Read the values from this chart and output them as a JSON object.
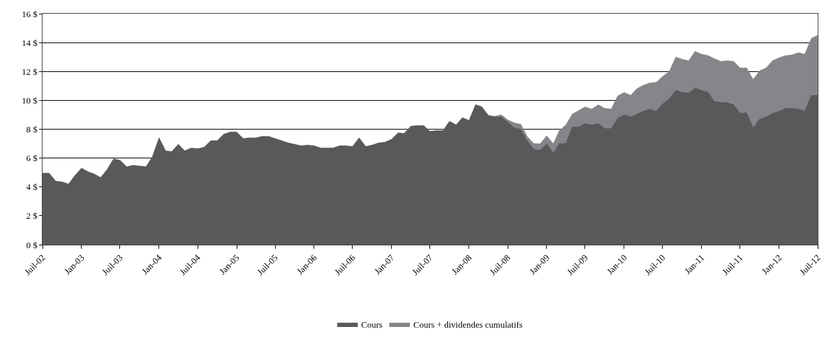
{
  "chart_data": {
    "type": "area",
    "x": [
      "2002-07",
      "2002-08",
      "2002-09",
      "2002-10",
      "2002-11",
      "2002-12",
      "2003-01",
      "2003-02",
      "2003-03",
      "2003-04",
      "2003-05",
      "2003-06",
      "2003-07",
      "2003-08",
      "2003-09",
      "2003-10",
      "2003-11",
      "2003-12",
      "2004-01",
      "2004-02",
      "2004-03",
      "2004-04",
      "2004-05",
      "2004-06",
      "2004-07",
      "2004-08",
      "2004-09",
      "2004-10",
      "2004-11",
      "2004-12",
      "2005-01",
      "2005-02",
      "2005-03",
      "2005-04",
      "2005-05",
      "2005-06",
      "2005-07",
      "2005-08",
      "2005-09",
      "2005-10",
      "2005-11",
      "2005-12",
      "2006-01",
      "2006-02",
      "2006-03",
      "2006-04",
      "2006-05",
      "2006-06",
      "2006-07",
      "2006-08",
      "2006-09",
      "2006-10",
      "2006-11",
      "2006-12",
      "2007-01",
      "2007-02",
      "2007-03",
      "2007-04",
      "2007-05",
      "2007-06",
      "2007-07",
      "2007-08",
      "2007-09",
      "2007-10",
      "2007-11",
      "2007-12",
      "2008-01",
      "2008-02",
      "2008-03",
      "2008-04",
      "2008-05",
      "2008-06",
      "2008-07",
      "2008-08",
      "2008-09",
      "2008-10",
      "2008-11",
      "2008-12",
      "2009-01",
      "2009-02",
      "2009-03",
      "2009-04",
      "2009-05",
      "2009-06",
      "2009-07",
      "2009-08",
      "2009-09",
      "2009-10",
      "2009-11",
      "2009-12",
      "2010-01",
      "2010-02",
      "2010-03",
      "2010-04",
      "2010-05",
      "2010-06",
      "2010-07",
      "2010-08",
      "2010-09",
      "2010-10",
      "2010-11",
      "2010-12",
      "2011-01",
      "2011-02",
      "2011-03",
      "2011-04",
      "2011-05",
      "2011-06",
      "2011-07",
      "2011-08",
      "2011-09",
      "2011-10",
      "2011-11",
      "2011-12",
      "2012-01",
      "2012-02",
      "2012-03",
      "2012-04",
      "2012-05",
      "2012-06",
      "2012-07"
    ],
    "series": [
      {
        "name": "Cours + dividendes cumulatifs",
        "color": "#858689",
        "values": [
          4.95,
          4.95,
          4.4,
          4.35,
          4.2,
          4.8,
          5.3,
          5.05,
          4.9,
          4.65,
          5.2,
          5.95,
          5.85,
          5.4,
          5.5,
          5.45,
          5.4,
          6.1,
          7.4,
          6.5,
          6.45,
          6.95,
          6.5,
          6.7,
          6.65,
          6.75,
          7.2,
          7.2,
          7.65,
          7.8,
          7.8,
          7.35,
          7.4,
          7.4,
          7.5,
          7.5,
          7.35,
          7.2,
          7.05,
          6.95,
          6.85,
          6.9,
          6.85,
          6.7,
          6.7,
          6.7,
          6.85,
          6.85,
          6.8,
          7.4,
          6.8,
          6.9,
          7.05,
          7.1,
          7.3,
          7.75,
          7.7,
          8.2,
          8.25,
          8.25,
          7.85,
          7.9,
          7.9,
          8.55,
          8.3,
          8.8,
          8.6,
          9.7,
          9.55,
          8.95,
          8.9,
          9.0,
          8.65,
          8.45,
          8.35,
          7.5,
          7.0,
          7.0,
          7.55,
          7.0,
          7.9,
          8.3,
          9.05,
          9.3,
          9.55,
          9.4,
          9.7,
          9.45,
          9.4,
          10.3,
          10.55,
          10.35,
          10.8,
          11.05,
          11.2,
          11.25,
          11.65,
          12.0,
          13.0,
          12.85,
          12.75,
          13.4,
          13.2,
          13.1,
          12.9,
          12.7,
          12.75,
          12.7,
          12.25,
          12.25,
          11.45,
          12.05,
          12.25,
          12.75,
          12.95,
          13.1,
          13.15,
          13.3,
          13.2,
          14.3,
          14.5
        ]
      },
      {
        "name": "Cours",
        "color": "#58595b",
        "values": [
          4.95,
          4.95,
          4.4,
          4.35,
          4.2,
          4.8,
          5.3,
          5.05,
          4.9,
          4.65,
          5.2,
          5.95,
          5.85,
          5.4,
          5.5,
          5.45,
          5.4,
          6.1,
          7.4,
          6.5,
          6.45,
          6.95,
          6.5,
          6.7,
          6.65,
          6.75,
          7.2,
          7.2,
          7.65,
          7.8,
          7.8,
          7.35,
          7.4,
          7.4,
          7.5,
          7.5,
          7.35,
          7.2,
          7.05,
          6.95,
          6.85,
          6.9,
          6.85,
          6.7,
          6.7,
          6.7,
          6.85,
          6.85,
          6.8,
          7.4,
          6.8,
          6.9,
          7.05,
          7.1,
          7.3,
          7.75,
          7.7,
          8.2,
          8.25,
          8.25,
          7.85,
          7.9,
          7.9,
          8.55,
          8.3,
          8.8,
          8.6,
          9.7,
          9.55,
          8.95,
          8.85,
          8.85,
          8.5,
          8.1,
          8.0,
          7.2,
          6.6,
          6.55,
          7.0,
          6.35,
          7.0,
          7.0,
          8.15,
          8.15,
          8.4,
          8.3,
          8.4,
          8.05,
          8.05,
          8.75,
          9.0,
          8.85,
          9.05,
          9.25,
          9.4,
          9.25,
          9.75,
          10.1,
          10.7,
          10.55,
          10.5,
          10.85,
          10.7,
          10.55,
          9.95,
          9.85,
          9.85,
          9.7,
          9.1,
          9.15,
          8.1,
          8.7,
          8.85,
          9.1,
          9.25,
          9.45,
          9.45,
          9.4,
          9.25,
          10.35,
          10.35
        ]
      }
    ],
    "xlim": [
      "2002-07",
      "2012-07"
    ],
    "xticks": [
      {
        "value": "2002-07",
        "label": "Juil-02"
      },
      {
        "value": "2003-01",
        "label": "Jan-03"
      },
      {
        "value": "2003-07",
        "label": "Juil-03"
      },
      {
        "value": "2004-01",
        "label": "Jan-04"
      },
      {
        "value": "2004-07",
        "label": "Juil-04"
      },
      {
        "value": "2005-01",
        "label": "Jan-05"
      },
      {
        "value": "2005-07",
        "label": "Juil-05"
      },
      {
        "value": "2006-01",
        "label": "Jan-06"
      },
      {
        "value": "2006-07",
        "label": "Juil-06"
      },
      {
        "value": "2007-01",
        "label": "Jan-07"
      },
      {
        "value": "2007-07",
        "label": "Juil-07"
      },
      {
        "value": "2008-01",
        "label": "Jan-08"
      },
      {
        "value": "2008-07",
        "label": "Juil-08"
      },
      {
        "value": "2009-01",
        "label": "Jan-09"
      },
      {
        "value": "2009-07",
        "label": "Juil-09"
      },
      {
        "value": "2010-01",
        "label": "Jan-10"
      },
      {
        "value": "2010-07",
        "label": "Juil-10"
      },
      {
        "value": "2011-01",
        "label": "Jan-11"
      },
      {
        "value": "2011-07",
        "label": "Juil-11"
      },
      {
        "value": "2012-01",
        "label": "Jan-12"
      },
      {
        "value": "2012-07",
        "label": "Juil-12"
      }
    ],
    "ylim": [
      0,
      16
    ],
    "yticks": [
      {
        "value": 0,
        "label": "0 $"
      },
      {
        "value": 2,
        "label": "2 $"
      },
      {
        "value": 4,
        "label": "4 $"
      },
      {
        "value": 6,
        "label": "6 $"
      },
      {
        "value": 8,
        "label": "8 $"
      },
      {
        "value": 10,
        "label": "10 $"
      },
      {
        "value": 12,
        "label": "12 $"
      },
      {
        "value": 14,
        "label": "14 $"
      },
      {
        "value": 16,
        "label": "16 $"
      }
    ],
    "grid": "y",
    "legend": "bottom"
  }
}
